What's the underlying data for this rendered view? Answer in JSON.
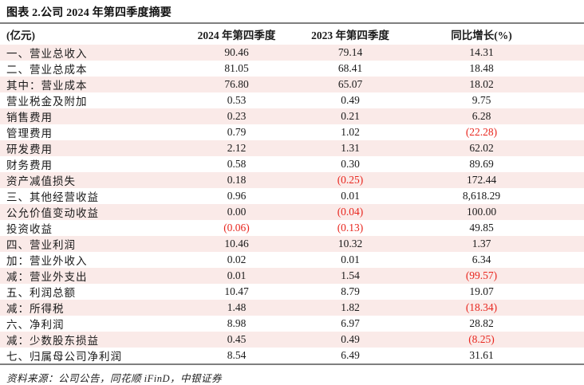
{
  "figure": {
    "title": "图表 2.公司 2024 年第四季度摘要",
    "source_note": "资料来源：公司公告，同花顺 iFinD，中银证券"
  },
  "colors": {
    "negative_red": "#e8251d",
    "row_stripe_pink": "#faeae8",
    "rule_gray": "#7f7f7f"
  },
  "table": {
    "columns": [
      "(亿元)",
      "2024 年第四季度",
      "2023 年第四季度",
      "同比增长(%)"
    ],
    "rows": [
      {
        "label": "一、营业总收入",
        "q4_2024": "90.46",
        "q4_2023": "79.14",
        "yoy": "14.31"
      },
      {
        "label": "二、营业总成本",
        "q4_2024": "81.05",
        "q4_2023": "68.41",
        "yoy": "18.48"
      },
      {
        "label": "其中：营业成本",
        "q4_2024": "76.80",
        "q4_2023": "65.07",
        "yoy": "18.02"
      },
      {
        "label": "营业税金及附加",
        "q4_2024": "0.53",
        "q4_2023": "0.49",
        "yoy": "9.75"
      },
      {
        "label": "销售费用",
        "q4_2024": "0.23",
        "q4_2023": "0.21",
        "yoy": "6.28"
      },
      {
        "label": "管理费用",
        "q4_2024": "0.79",
        "q4_2023": "1.02",
        "yoy": "(22.28)"
      },
      {
        "label": "研发费用",
        "q4_2024": "2.12",
        "q4_2023": "1.31",
        "yoy": "62.02"
      },
      {
        "label": "财务费用",
        "q4_2024": "0.58",
        "q4_2023": "0.30",
        "yoy": "89.69"
      },
      {
        "label": "资产减值损失",
        "q4_2024": "0.18",
        "q4_2023": "(0.25)",
        "yoy": "172.44"
      },
      {
        "label": "三、其他经营收益",
        "q4_2024": "0.96",
        "q4_2023": "0.01",
        "yoy": "8,618.29"
      },
      {
        "label": "公允价值变动收益",
        "q4_2024": "0.00",
        "q4_2023": "(0.04)",
        "yoy": "100.00"
      },
      {
        "label": "投资收益",
        "q4_2024": "(0.06)",
        "q4_2023": "(0.13)",
        "yoy": "49.85"
      },
      {
        "label": "四、营业利润",
        "q4_2024": "10.46",
        "q4_2023": "10.32",
        "yoy": "1.37"
      },
      {
        "label": "加：营业外收入",
        "q4_2024": "0.02",
        "q4_2023": "0.01",
        "yoy": "6.34"
      },
      {
        "label": "减：营业外支出",
        "q4_2024": "0.01",
        "q4_2023": "1.54",
        "yoy": "(99.57)"
      },
      {
        "label": "五、利润总额",
        "q4_2024": "10.47",
        "q4_2023": "8.79",
        "yoy": "19.07"
      },
      {
        "label": "减：所得税",
        "q4_2024": "1.48",
        "q4_2023": "1.82",
        "yoy": "(18.34)"
      },
      {
        "label": "六、净利润",
        "q4_2024": "8.98",
        "q4_2023": "6.97",
        "yoy": "28.82"
      },
      {
        "label": "减：少数股东损益",
        "q4_2024": "0.45",
        "q4_2023": "0.49",
        "yoy": "(8.25)"
      },
      {
        "label": "七、归属母公司净利润",
        "q4_2024": "8.54",
        "q4_2023": "6.49",
        "yoy": "31.61"
      }
    ]
  }
}
